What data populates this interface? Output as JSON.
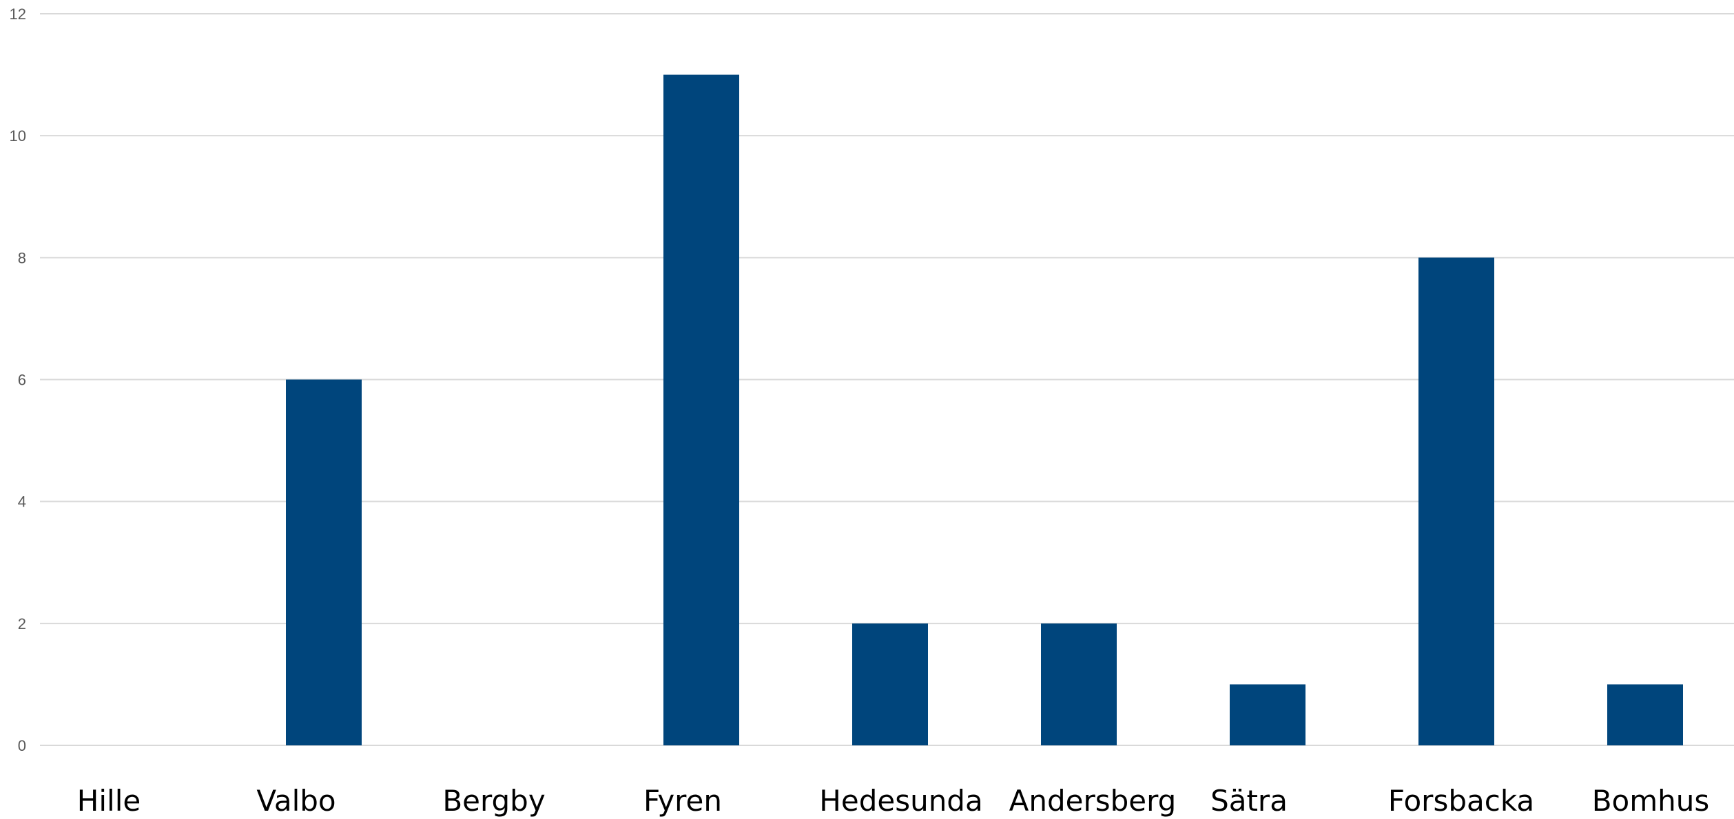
{
  "chart_data": {
    "type": "bar",
    "categories": [
      "Hille",
      "Valbo",
      "Bergby",
      "Fyren",
      "Hedesunda",
      "Andersberg",
      "Sätra",
      "Forsbacka",
      "Bomhus"
    ],
    "values": [
      0,
      6,
      0,
      11,
      2,
      2,
      1,
      8,
      1
    ],
    "yticks": [
      0,
      2,
      4,
      6,
      8,
      10,
      12
    ],
    "ylim": [
      0,
      12
    ],
    "grid": true,
    "bar_color": "#00457c",
    "grid_color": "#d9d9d9"
  }
}
